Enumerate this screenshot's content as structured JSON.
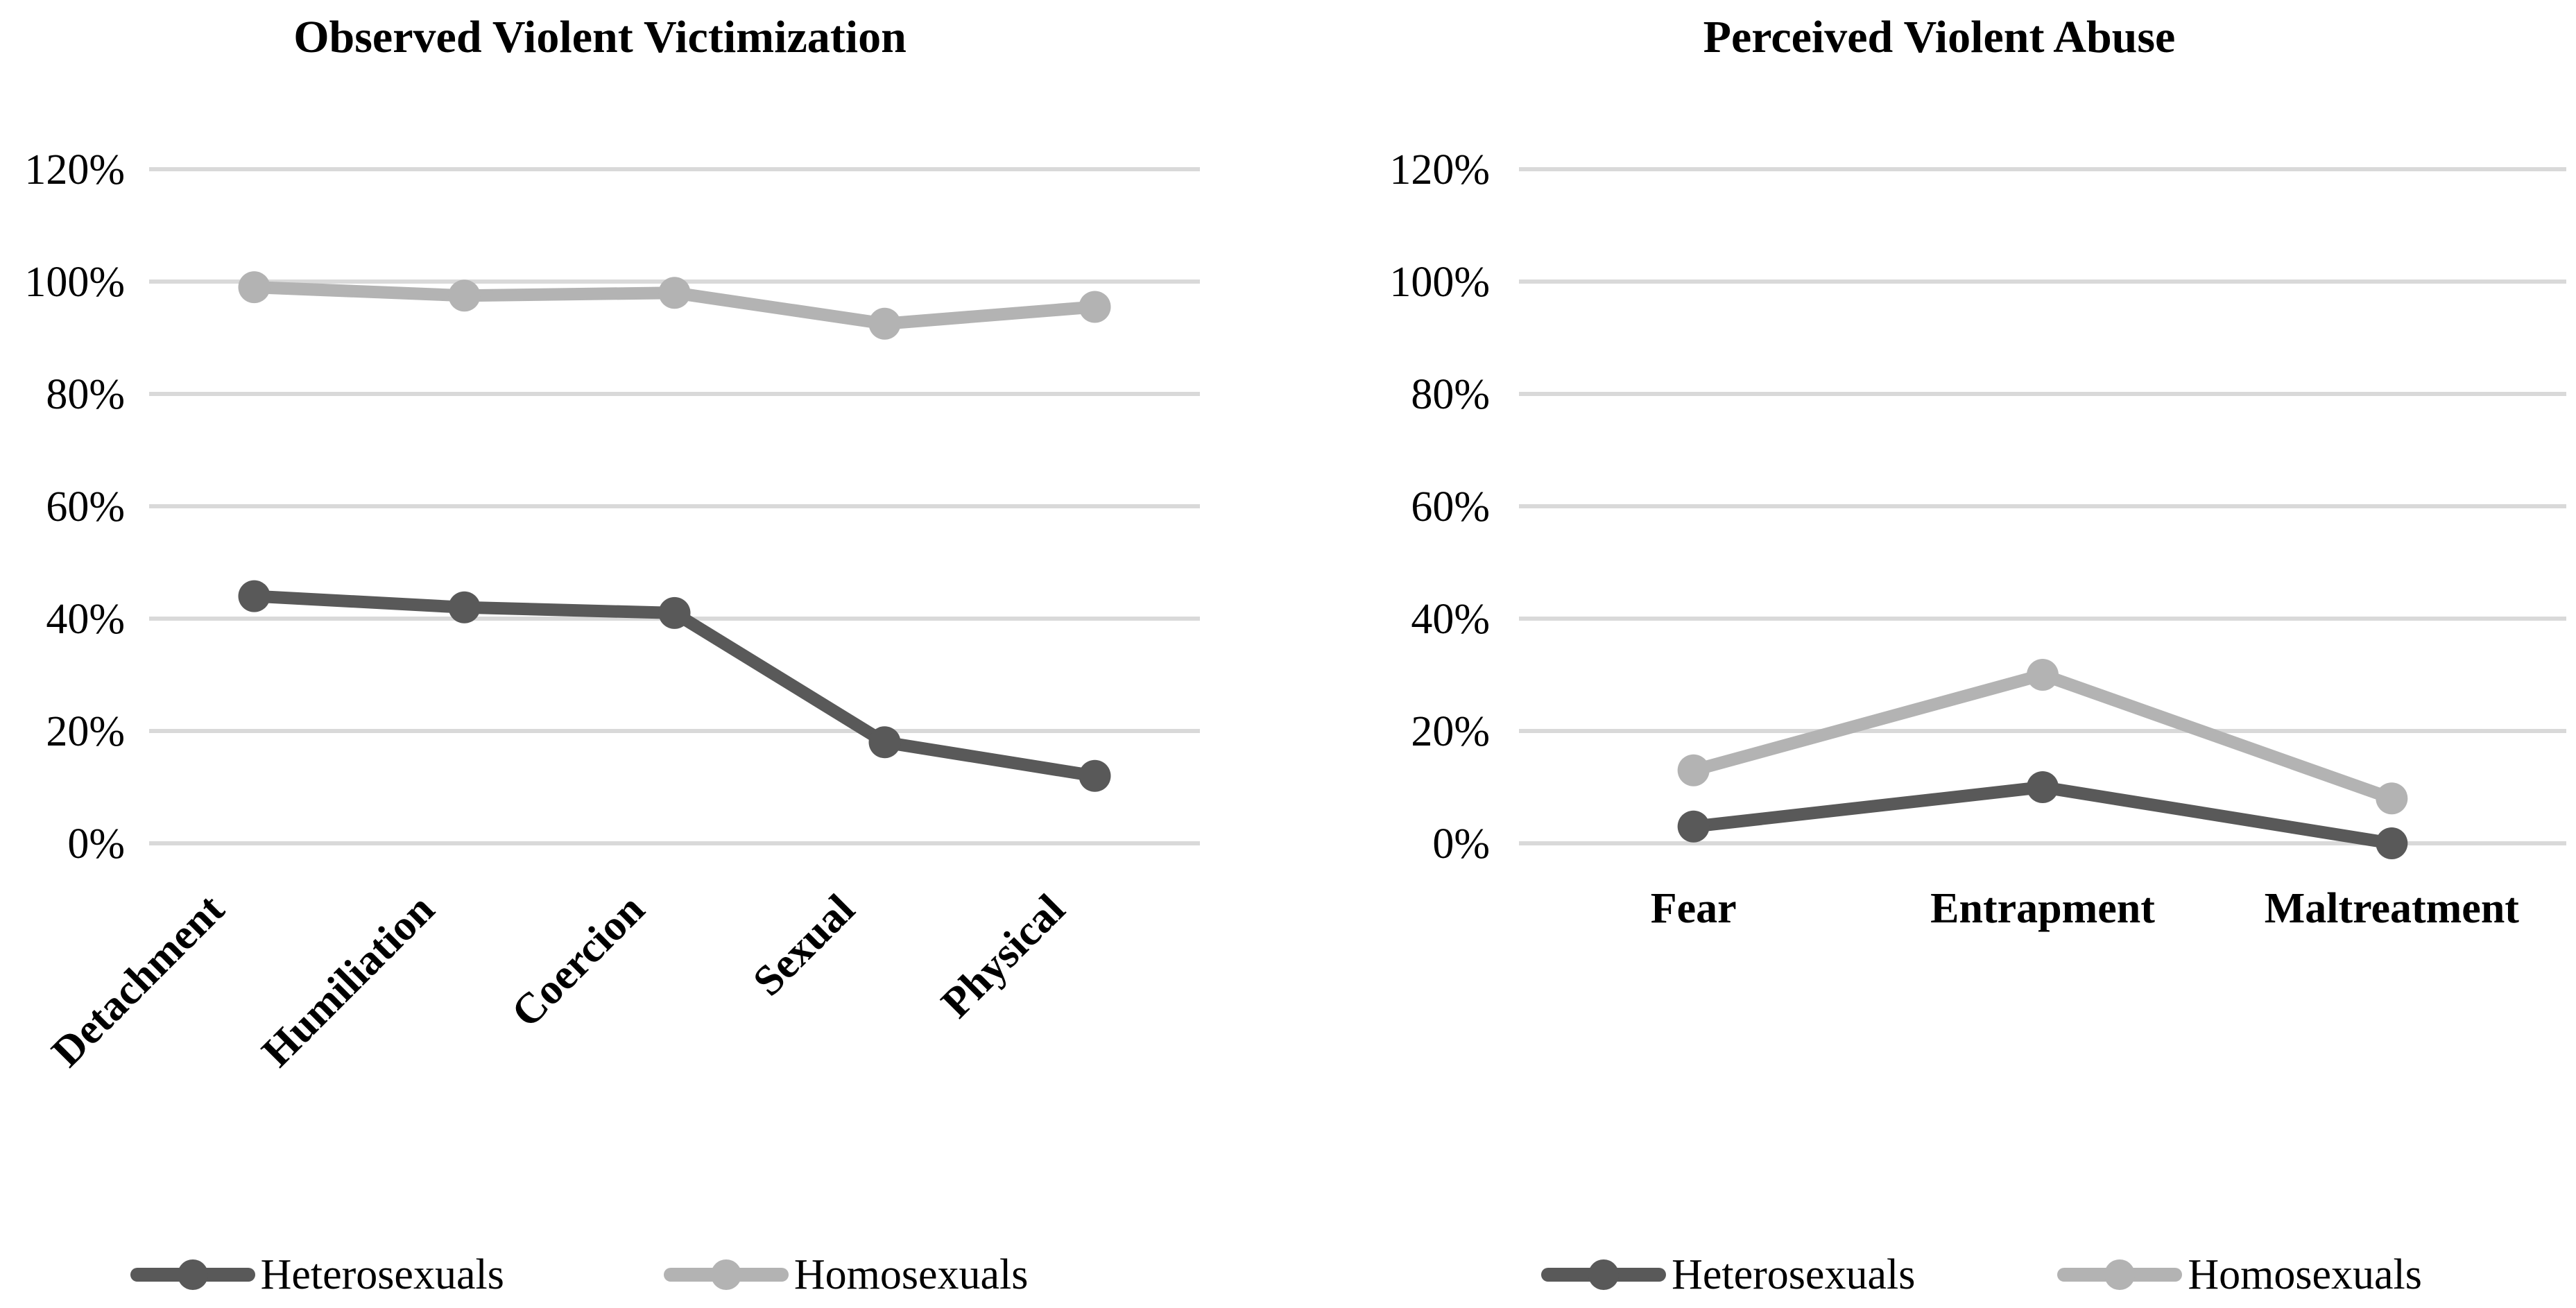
{
  "figure": {
    "background": "#ffffff",
    "gridline_color": "#d9d9d9",
    "text_color": "#000000",
    "series_colors": {
      "heterosexuals": "#595959",
      "homosexuals": "#b3b3b3"
    }
  },
  "chart_data": [
    {
      "type": "line",
      "title": "Observed Violent Victimization",
      "categories": [
        "Detachment",
        "Humiliation",
        "Coercion",
        "Sexual",
        "Physical"
      ],
      "series": [
        {
          "name": "Heterosexuals",
          "color": "#595959",
          "values": [
            44,
            42,
            41,
            18,
            12
          ]
        },
        {
          "name": "Homosexuals",
          "color": "#b3b3b3",
          "values": [
            99,
            97.5,
            98,
            92.5,
            95.5
          ]
        }
      ],
      "y_axis": {
        "min": 0,
        "max": 120,
        "step": 20,
        "unit": "%",
        "ticks": [
          "0%",
          "20%",
          "40%",
          "60%",
          "80%",
          "100%",
          "120%"
        ]
      },
      "x_label_rotation": 45,
      "grid": true,
      "legend_position": "bottom",
      "legend": [
        "Heterosexuals",
        "Homosexuals"
      ]
    },
    {
      "type": "line",
      "title": "Perceived Violent Abuse",
      "categories": [
        "Fear",
        "Entrapment",
        "Maltreatment"
      ],
      "series": [
        {
          "name": "Heterosexuals",
          "color": "#595959",
          "values": [
            3,
            10,
            0
          ]
        },
        {
          "name": "Homosexuals",
          "color": "#b3b3b3",
          "values": [
            13,
            30,
            8
          ]
        }
      ],
      "y_axis": {
        "min": 0,
        "max": 120,
        "step": 20,
        "unit": "%",
        "ticks": [
          "0%",
          "20%",
          "40%",
          "60%",
          "80%",
          "100%",
          "120%"
        ]
      },
      "x_label_rotation": 0,
      "grid": true,
      "legend_position": "bottom",
      "legend": [
        "Heterosexuals",
        "Homosexuals"
      ]
    }
  ]
}
